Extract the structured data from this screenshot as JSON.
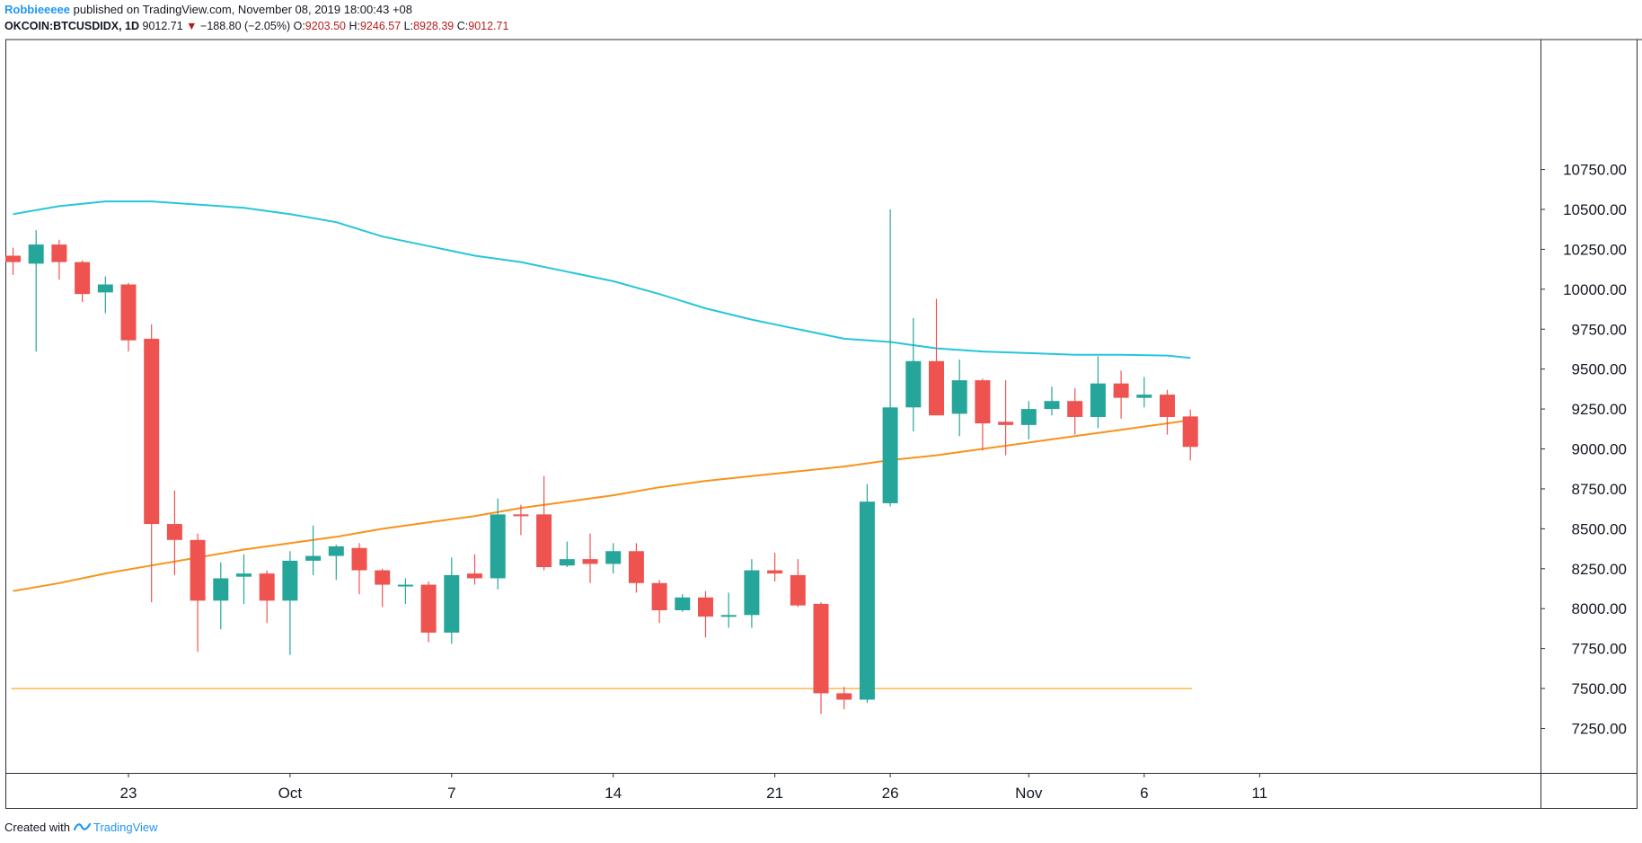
{
  "header": {
    "author": "Robbieeeee",
    "published_text": "published on TradingView.com, November 08, 2019 18:00:43 +08",
    "symbol": "OKCOIN:BTCUSDIDX, 1D",
    "last": "9012.71",
    "down_arrow": "▼",
    "change": "−188.80 (−2.05%)",
    "o_label": "O:",
    "o_value": "9203.50",
    "h_label": "H:",
    "h_value": "9246.57",
    "l_label": "L:",
    "l_value": "8928.39",
    "c_label": "C:",
    "c_value": "9012.71"
  },
  "footer": {
    "created_with": "Created with",
    "brand": "TradingView",
    "brand_icon": "tradingview-logo-icon"
  },
  "colors": {
    "up": "#26a69a",
    "down": "#ef5350",
    "ma_cyan": "#26c6da",
    "ma_orange": "#f7931a",
    "support_line": "#ffb74d",
    "border": "#2a2e39",
    "text": "#131722",
    "brand": "#2196f3"
  },
  "chart_data": {
    "type": "candlestick",
    "x_ticks": [
      "23",
      "Oct",
      "7",
      "14",
      "21",
      "26",
      "Nov",
      "6",
      "11"
    ],
    "y_ticks": [
      "7250.00",
      "7500.00",
      "7750.00",
      "8000.00",
      "8250.00",
      "8500.00",
      "8750.00",
      "9000.00",
      "9250.00",
      "9500.00",
      "9750.00",
      "10000.00",
      "10250.00",
      "10500.00",
      "10750.00"
    ],
    "ylim": [
      7050,
      10950
    ],
    "x_tick_days": [
      23,
      30,
      37,
      44,
      51,
      56,
      62,
      67,
      72
    ],
    "candles": [
      {
        "day": 18,
        "o": 10210,
        "h": 10260,
        "l": 10090,
        "c": 10170
      },
      {
        "day": 19,
        "o": 10160,
        "h": 10370,
        "l": 9610,
        "c": 10280
      },
      {
        "day": 20,
        "o": 10280,
        "h": 10310,
        "l": 10060,
        "c": 10170
      },
      {
        "day": 21,
        "o": 10170,
        "h": 10180,
        "l": 9920,
        "c": 9970
      },
      {
        "day": 22,
        "o": 9980,
        "h": 10080,
        "l": 9850,
        "c": 10030
      },
      {
        "day": 23,
        "o": 10030,
        "h": 10040,
        "l": 9610,
        "c": 9680
      },
      {
        "day": 24,
        "o": 9690,
        "h": 9780,
        "l": 8040,
        "c": 8530
      },
      {
        "day": 25,
        "o": 8530,
        "h": 8740,
        "l": 8210,
        "c": 8430
      },
      {
        "day": 26,
        "o": 8430,
        "h": 8470,
        "l": 7730,
        "c": 8050
      },
      {
        "day": 27,
        "o": 8050,
        "h": 8290,
        "l": 7870,
        "c": 8190
      },
      {
        "day": 28,
        "o": 8200,
        "h": 8340,
        "l": 8030,
        "c": 8220
      },
      {
        "day": 29,
        "o": 8220,
        "h": 8240,
        "l": 7910,
        "c": 8050
      },
      {
        "day": 30,
        "o": 8050,
        "h": 8360,
        "l": 7710,
        "c": 8300
      },
      {
        "day": 31,
        "o": 8300,
        "h": 8520,
        "l": 8210,
        "c": 8330
      },
      {
        "day": 32,
        "o": 8330,
        "h": 8400,
        "l": 8180,
        "c": 8390
      },
      {
        "day": 33,
        "o": 8380,
        "h": 8410,
        "l": 8090,
        "c": 8240
      },
      {
        "day": 34,
        "o": 8240,
        "h": 8250,
        "l": 8010,
        "c": 8150
      },
      {
        "day": 35,
        "o": 8150,
        "h": 8190,
        "l": 8030,
        "c": 8150
      },
      {
        "day": 36,
        "o": 8150,
        "h": 8170,
        "l": 7790,
        "c": 7850
      },
      {
        "day": 37,
        "o": 7850,
        "h": 8320,
        "l": 7780,
        "c": 8210
      },
      {
        "day": 38,
        "o": 8220,
        "h": 8340,
        "l": 8150,
        "c": 8190
      },
      {
        "day": 39,
        "o": 8190,
        "h": 8690,
        "l": 8120,
        "c": 8590
      },
      {
        "day": 40,
        "o": 8590,
        "h": 8650,
        "l": 8460,
        "c": 8580
      },
      {
        "day": 41,
        "o": 8590,
        "h": 8830,
        "l": 8240,
        "c": 8260
      },
      {
        "day": 42,
        "o": 8270,
        "h": 8420,
        "l": 8260,
        "c": 8310
      },
      {
        "day": 43,
        "o": 8310,
        "h": 8470,
        "l": 8160,
        "c": 8280
      },
      {
        "day": 44,
        "o": 8280,
        "h": 8410,
        "l": 8220,
        "c": 8360
      },
      {
        "day": 45,
        "o": 8360,
        "h": 8410,
        "l": 8100,
        "c": 8160
      },
      {
        "day": 46,
        "o": 8160,
        "h": 8180,
        "l": 7910,
        "c": 7990
      },
      {
        "day": 47,
        "o": 7990,
        "h": 8090,
        "l": 7980,
        "c": 8070
      },
      {
        "day": 48,
        "o": 8070,
        "h": 8110,
        "l": 7820,
        "c": 7950
      },
      {
        "day": 49,
        "o": 7960,
        "h": 8100,
        "l": 7880,
        "c": 7960
      },
      {
        "day": 50,
        "o": 7960,
        "h": 8310,
        "l": 7880,
        "c": 8240
      },
      {
        "day": 51,
        "o": 8240,
        "h": 8350,
        "l": 8170,
        "c": 8220
      },
      {
        "day": 52,
        "o": 8210,
        "h": 8310,
        "l": 8010,
        "c": 8020
      },
      {
        "day": 53,
        "o": 8030,
        "h": 8040,
        "l": 7340,
        "c": 7470
      },
      {
        "day": 54,
        "o": 7470,
        "h": 7510,
        "l": 7370,
        "c": 7430
      },
      {
        "day": 55,
        "o": 7430,
        "h": 8780,
        "l": 7410,
        "c": 8670
      },
      {
        "day": 56,
        "o": 8660,
        "h": 10500,
        "l": 8640,
        "c": 9260
      },
      {
        "day": 57,
        "o": 9260,
        "h": 9820,
        "l": 9110,
        "c": 9550
      },
      {
        "day": 58,
        "o": 9550,
        "h": 9940,
        "l": 9210,
        "c": 9210
      },
      {
        "day": 59,
        "o": 9220,
        "h": 9560,
        "l": 9080,
        "c": 9430
      },
      {
        "day": 60,
        "o": 9430,
        "h": 9440,
        "l": 8990,
        "c": 9160
      },
      {
        "day": 61,
        "o": 9170,
        "h": 9430,
        "l": 8960,
        "c": 9150
      },
      {
        "day": 62,
        "o": 9150,
        "h": 9300,
        "l": 9060,
        "c": 9250
      },
      {
        "day": 63,
        "o": 9250,
        "h": 9390,
        "l": 9210,
        "c": 9300
      },
      {
        "day": 64,
        "o": 9300,
        "h": 9380,
        "l": 9090,
        "c": 9200
      },
      {
        "day": 65,
        "o": 9200,
        "h": 9580,
        "l": 9130,
        "c": 9410
      },
      {
        "day": 66,
        "o": 9410,
        "h": 9490,
        "l": 9190,
        "c": 9320
      },
      {
        "day": 67,
        "o": 9320,
        "h": 9450,
        "l": 9260,
        "c": 9340
      },
      {
        "day": 68,
        "o": 9340,
        "h": 9370,
        "l": 9090,
        "c": 9200
      },
      {
        "day": 69,
        "o": 9203.5,
        "h": 9246.57,
        "l": 8928.39,
        "c": 9012.71
      }
    ],
    "ma_cyan": [
      [
        18,
        10470
      ],
      [
        20,
        10520
      ],
      [
        22,
        10550
      ],
      [
        24,
        10550
      ],
      [
        26,
        10530
      ],
      [
        28,
        10510
      ],
      [
        30,
        10470
      ],
      [
        32,
        10420
      ],
      [
        34,
        10330
      ],
      [
        36,
        10270
      ],
      [
        38,
        10210
      ],
      [
        40,
        10170
      ],
      [
        42,
        10110
      ],
      [
        44,
        10050
      ],
      [
        46,
        9970
      ],
      [
        48,
        9880
      ],
      [
        50,
        9810
      ],
      [
        52,
        9750
      ],
      [
        54,
        9690
      ],
      [
        56,
        9670
      ],
      [
        58,
        9630
      ],
      [
        60,
        9610
      ],
      [
        62,
        9600
      ],
      [
        64,
        9590
      ],
      [
        66,
        9590
      ],
      [
        68,
        9585
      ],
      [
        69,
        9570
      ]
    ],
    "ma_orange": [
      [
        18,
        8110
      ],
      [
        20,
        8160
      ],
      [
        22,
        8220
      ],
      [
        24,
        8270
      ],
      [
        26,
        8320
      ],
      [
        28,
        8370
      ],
      [
        30,
        8410
      ],
      [
        32,
        8450
      ],
      [
        34,
        8500
      ],
      [
        36,
        8540
      ],
      [
        38,
        8580
      ],
      [
        40,
        8630
      ],
      [
        42,
        8670
      ],
      [
        44,
        8710
      ],
      [
        46,
        8760
      ],
      [
        48,
        8800
      ],
      [
        50,
        8830
      ],
      [
        52,
        8860
      ],
      [
        54,
        8890
      ],
      [
        56,
        8930
      ],
      [
        58,
        8960
      ],
      [
        60,
        9000
      ],
      [
        62,
        9040
      ],
      [
        64,
        9080
      ],
      [
        66,
        9120
      ],
      [
        68,
        9160
      ],
      [
        69,
        9180
      ]
    ],
    "support_level": 7500,
    "support_range": [
      18,
      69
    ]
  }
}
